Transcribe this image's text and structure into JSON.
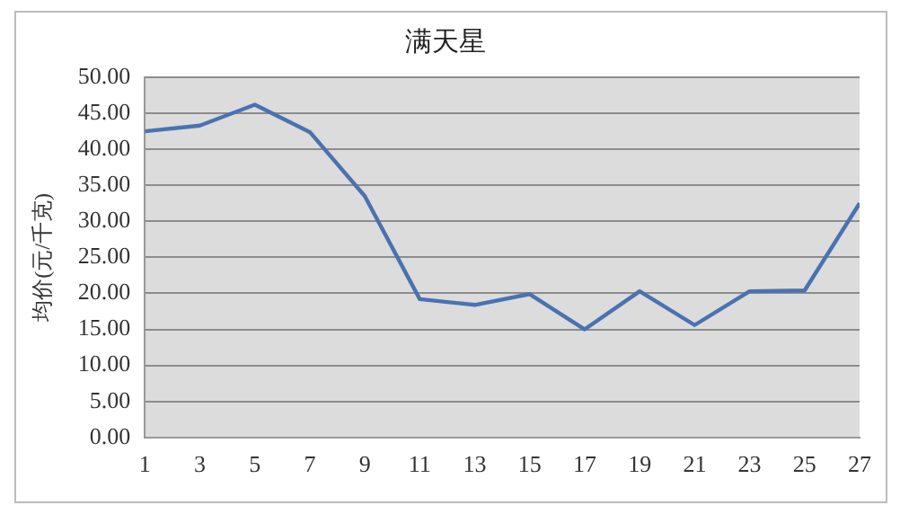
{
  "chart_data": {
    "type": "line",
    "title": "满天星",
    "ylabel": "均价(元/千克)",
    "x": [
      1,
      3,
      5,
      7,
      9,
      11,
      13,
      15,
      17,
      19,
      21,
      23,
      25,
      27
    ],
    "xlim": [
      1,
      27
    ],
    "xticks": [
      1,
      3,
      5,
      7,
      9,
      11,
      13,
      15,
      17,
      19,
      21,
      23,
      25,
      27
    ],
    "series": [
      {
        "color": "#4a72b0",
        "values": [
          42.5,
          43.3,
          46.2,
          42.4,
          33.5,
          19.2,
          18.4,
          19.9,
          15.0,
          20.3,
          15.6,
          20.3,
          20.4,
          32.5
        ]
      }
    ],
    "ylim": [
      0,
      50
    ],
    "yticks": [
      {
        "value": 0,
        "label": "0.00"
      },
      {
        "value": 5,
        "label": "5.00"
      },
      {
        "value": 10,
        "label": "10.00"
      },
      {
        "value": 15,
        "label": "15.00"
      },
      {
        "value": 20,
        "label": "20.00"
      },
      {
        "value": 25,
        "label": "25.00"
      },
      {
        "value": 30,
        "label": "30.00"
      },
      {
        "value": 35,
        "label": "35.00"
      },
      {
        "value": 40,
        "label": "40.00"
      },
      {
        "value": 45,
        "label": "45.00"
      },
      {
        "value": 50,
        "label": "50.00"
      }
    ],
    "grid": "y",
    "legend": false,
    "marker": "none",
    "line_style": "solid"
  }
}
